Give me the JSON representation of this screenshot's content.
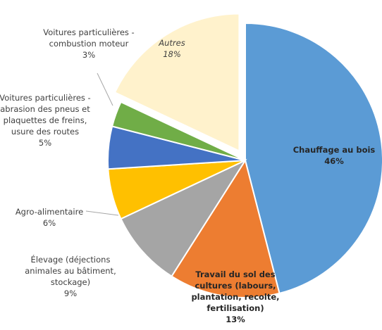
{
  "chart_data": {
    "type": "pie",
    "categories": [
      "Chauffage au bois",
      "Travail du sol des cultures (labours, plantation, recolte, fertilisation)",
      "Élevage (déjections animales au bâtiment, stockage)",
      "Agro-alimentaire",
      "Voitures particulières - abrasion des pneus et plaquettes de freins, usure des routes",
      "Voitures particulières - combustion moteur",
      "Autres"
    ],
    "values": [
      46,
      13,
      9,
      6,
      5,
      3,
      18
    ],
    "value_labels": [
      "46%",
      "13%",
      "9%",
      "6%",
      "5%",
      "3%",
      "18%"
    ],
    "colors": [
      "#5b9bd5",
      "#ed7d31",
      "#a5a5a5",
      "#ffc000",
      "#4472c4",
      "#70ad47",
      "#fff2cc"
    ]
  }
}
